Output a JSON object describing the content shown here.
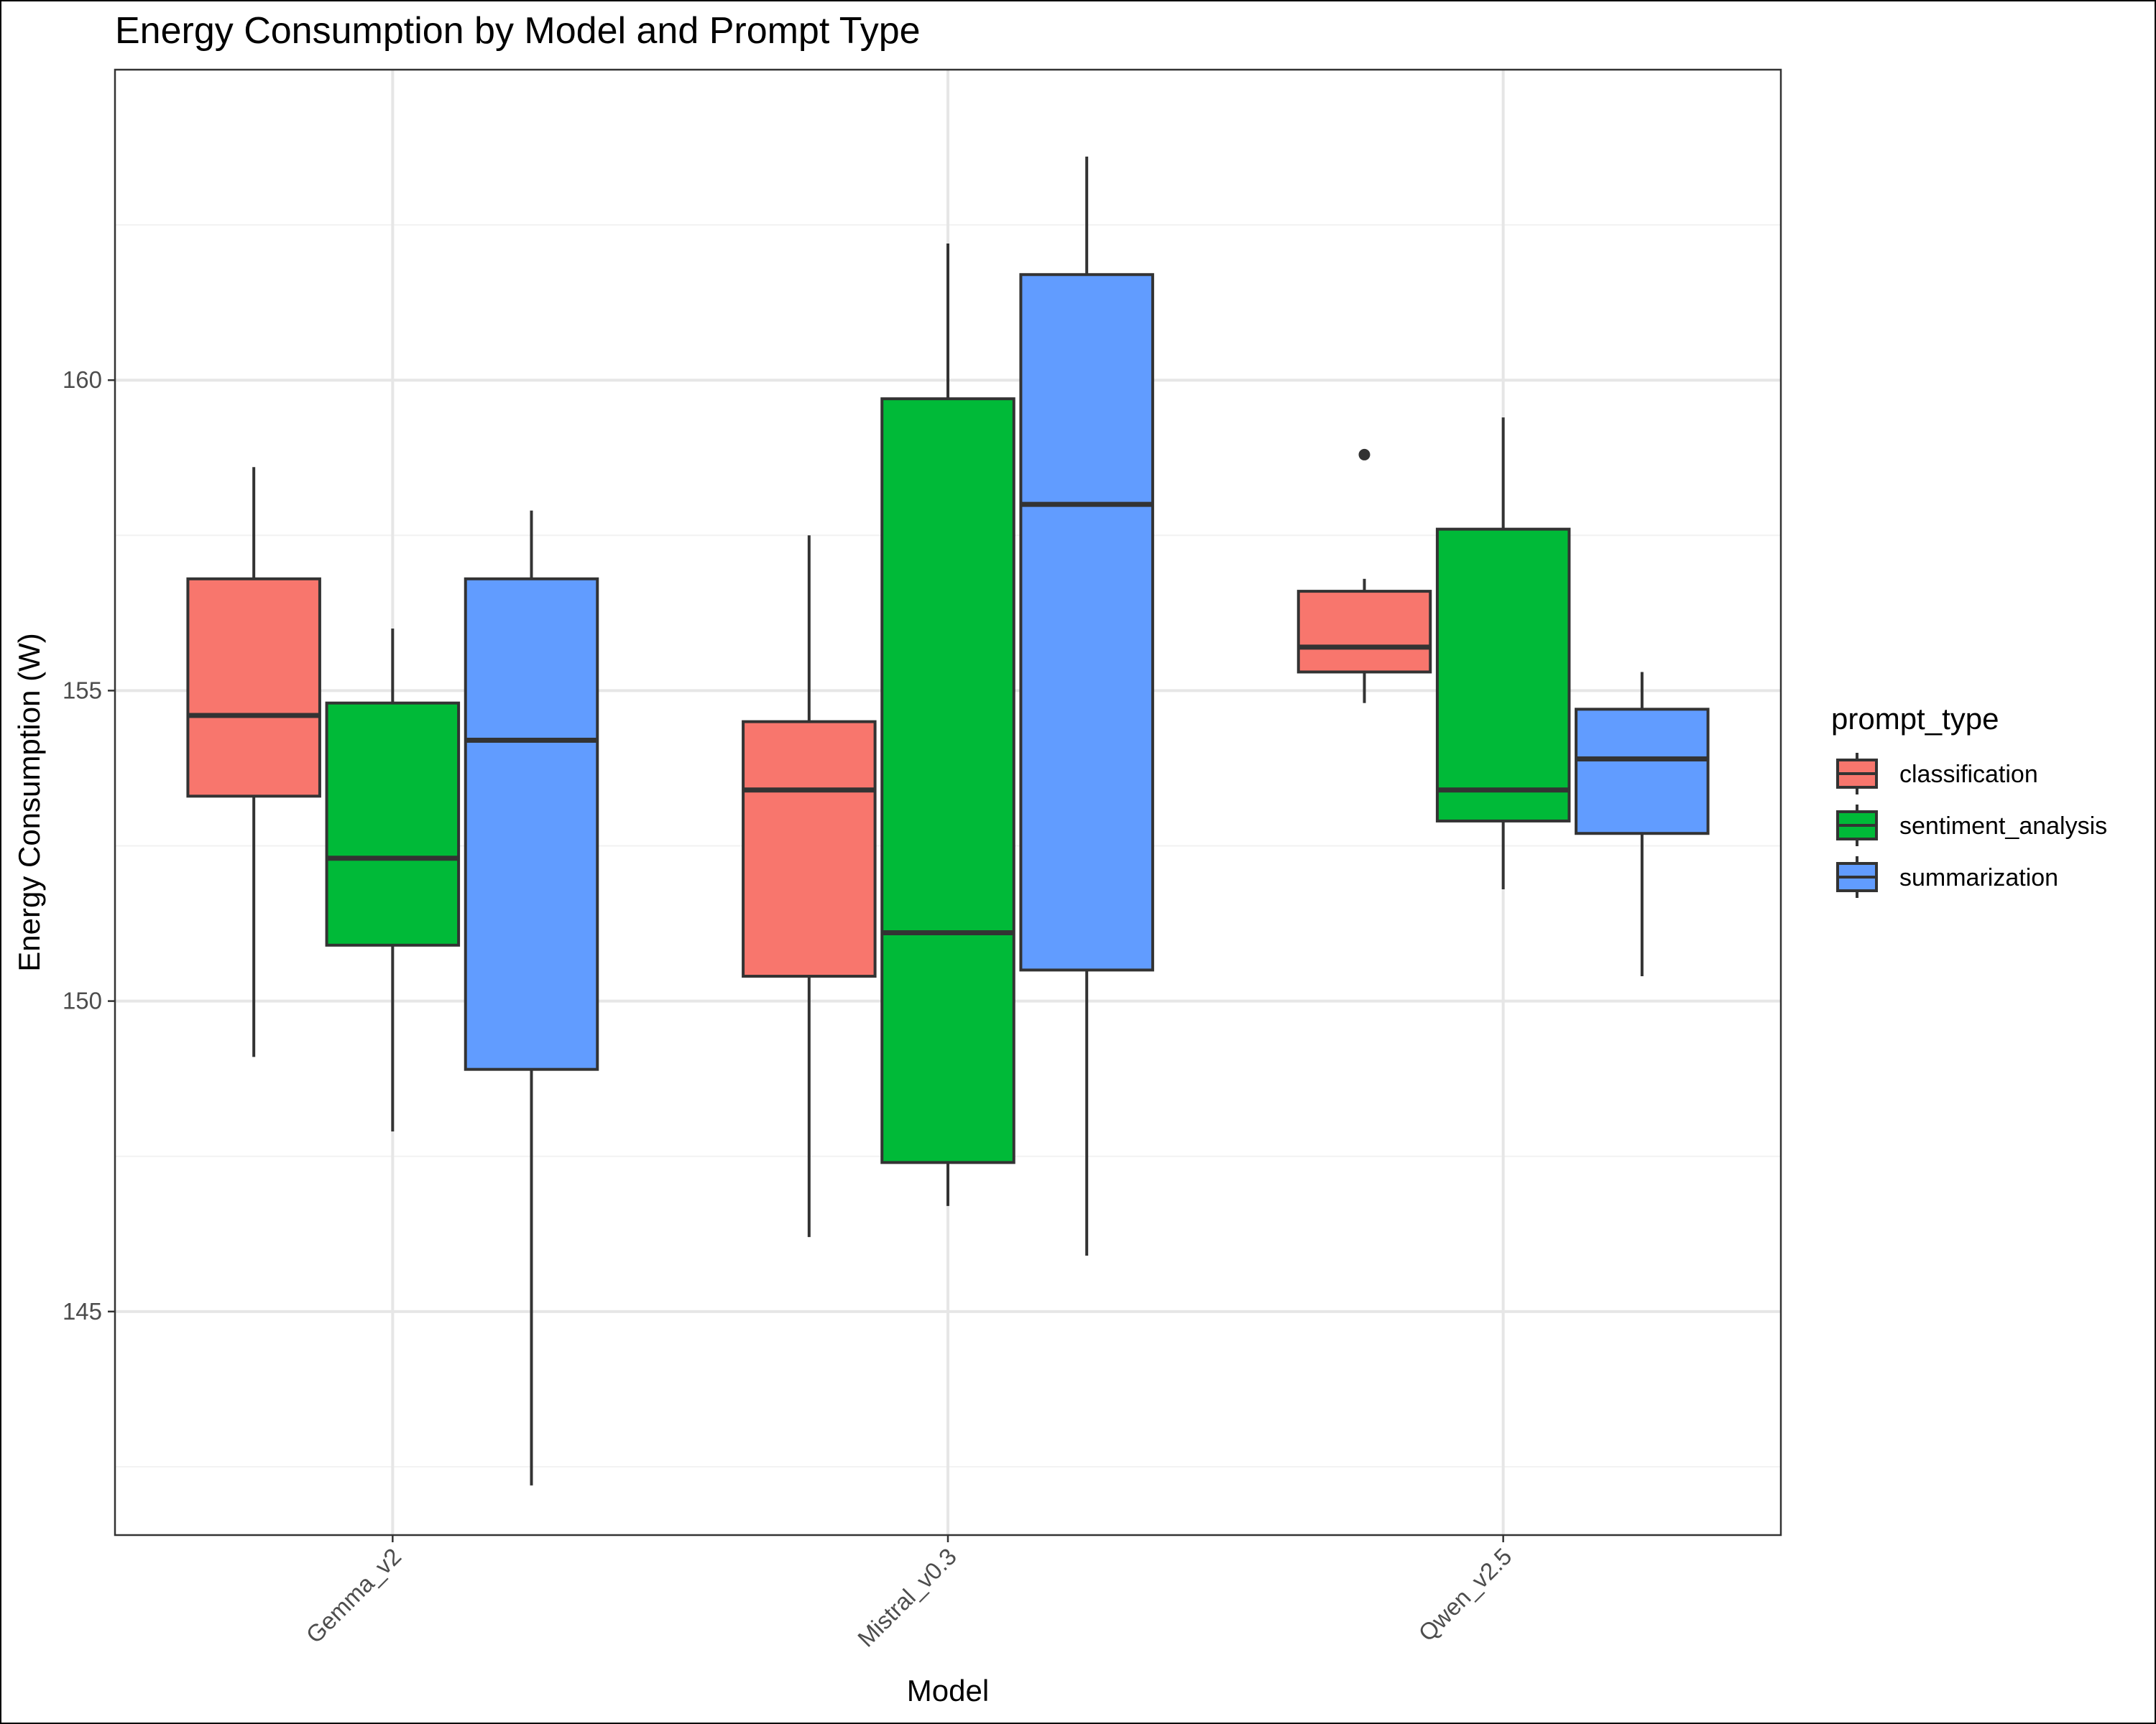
{
  "chart_data": {
    "type": "boxplot",
    "title": "Energy Consumption by Model and Prompt Type",
    "xlabel": "Model",
    "ylabel": "Energy Consumption (W)",
    "ylim": [
      141.4,
      165.0
    ],
    "yticks": [
      145,
      150,
      155,
      160
    ],
    "categories": [
      "Gemma_v2",
      "Mistral_v0.3",
      "Qwen_v2.5"
    ],
    "legend": {
      "title": "prompt_type",
      "position": "right"
    },
    "grid": true,
    "series": [
      {
        "name": "classification",
        "color": "#F8766D",
        "boxes": [
          {
            "whisker_low": 149.1,
            "q1": 153.3,
            "median": 154.6,
            "q3": 156.8,
            "whisker_high": 158.6,
            "outliers": []
          },
          {
            "whisker_low": 146.2,
            "q1": 150.4,
            "median": 153.4,
            "q3": 154.5,
            "whisker_high": 157.5,
            "outliers": []
          },
          {
            "whisker_low": 154.8,
            "q1": 155.3,
            "median": 155.7,
            "q3": 156.6,
            "whisker_high": 156.8,
            "outliers": [
              158.8
            ]
          }
        ]
      },
      {
        "name": "sentiment_analysis",
        "color": "#00BA38",
        "boxes": [
          {
            "whisker_low": 147.9,
            "q1": 150.9,
            "median": 152.3,
            "q3": 154.8,
            "whisker_high": 156.0,
            "outliers": []
          },
          {
            "whisker_low": 146.7,
            "q1": 147.4,
            "median": 151.1,
            "q3": 159.7,
            "whisker_high": 162.2,
            "outliers": []
          },
          {
            "whisker_low": 151.8,
            "q1": 152.9,
            "median": 153.4,
            "q3": 157.6,
            "whisker_high": 159.4,
            "outliers": []
          }
        ]
      },
      {
        "name": "summarization",
        "color": "#619CFF",
        "boxes": [
          {
            "whisker_low": 142.2,
            "q1": 148.9,
            "median": 154.2,
            "q3": 156.8,
            "whisker_high": 157.9,
            "outliers": []
          },
          {
            "whisker_low": 145.9,
            "q1": 150.5,
            "median": 158.0,
            "q3": 161.7,
            "whisker_high": 163.6,
            "outliers": []
          },
          {
            "whisker_low": 150.4,
            "q1": 152.7,
            "median": 153.9,
            "q3": 154.7,
            "whisker_high": 155.3,
            "outliers": []
          }
        ]
      }
    ]
  }
}
